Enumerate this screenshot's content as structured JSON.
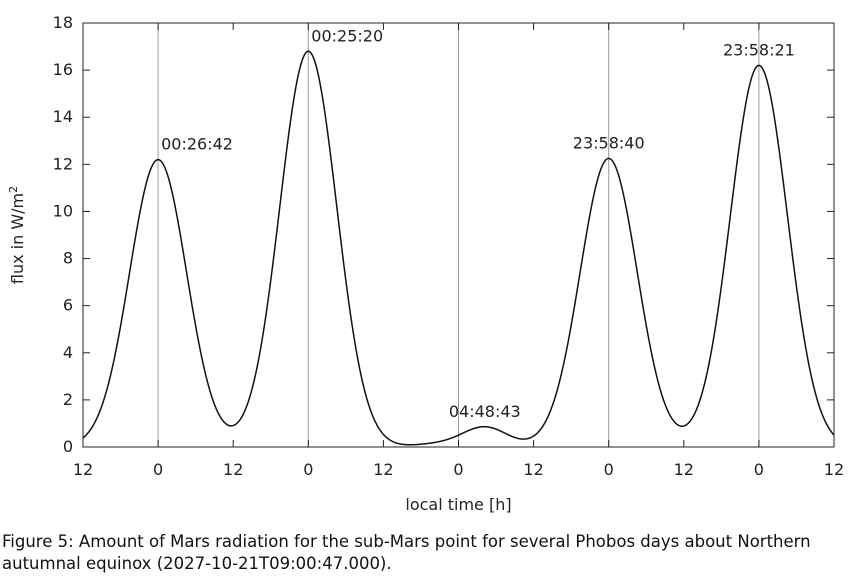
{
  "chart_data": {
    "type": "line",
    "xlabel": "local time [h]",
    "ylabel": "flux in W/m",
    "ylabel_sup": "2",
    "ylim": [
      0,
      18
    ],
    "yticks": [
      0,
      2,
      4,
      6,
      8,
      10,
      12,
      14,
      16,
      18
    ],
    "x_tick_labels": [
      "12",
      "0",
      "12",
      "0",
      "12",
      "0",
      "12",
      "0",
      "12",
      "0",
      "12"
    ],
    "x_range_segments": 10,
    "vertical_lines_at_ticks": [
      1,
      3,
      5,
      7,
      9
    ],
    "grid": false,
    "legend": "none",
    "series": [
      {
        "type": "gaussian-peaks",
        "peaks": [
          {
            "tick_position": 1.0,
            "value": 12.2,
            "label": "00:26:42"
          },
          {
            "tick_position": 3.0,
            "value": 16.8,
            "label": "00:25:20"
          },
          {
            "tick_position": 4.7,
            "value": 0.12,
            "label": ""
          },
          {
            "tick_position": 5.35,
            "value": 0.85,
            "label": "04:48:43"
          },
          {
            "tick_position": 7.0,
            "value": 12.25,
            "label": "23:58:40"
          },
          {
            "tick_position": 9.0,
            "value": 16.2,
            "label": "23:58:21"
          }
        ]
      }
    ],
    "line_color": "#111111",
    "vline_color": "#999999"
  },
  "caption": "Figure 5: Amount of Mars radiation for the sub-Mars point for several Phobos days about Northern autumnal equinox (2027-10-21T09:00:47.000)."
}
